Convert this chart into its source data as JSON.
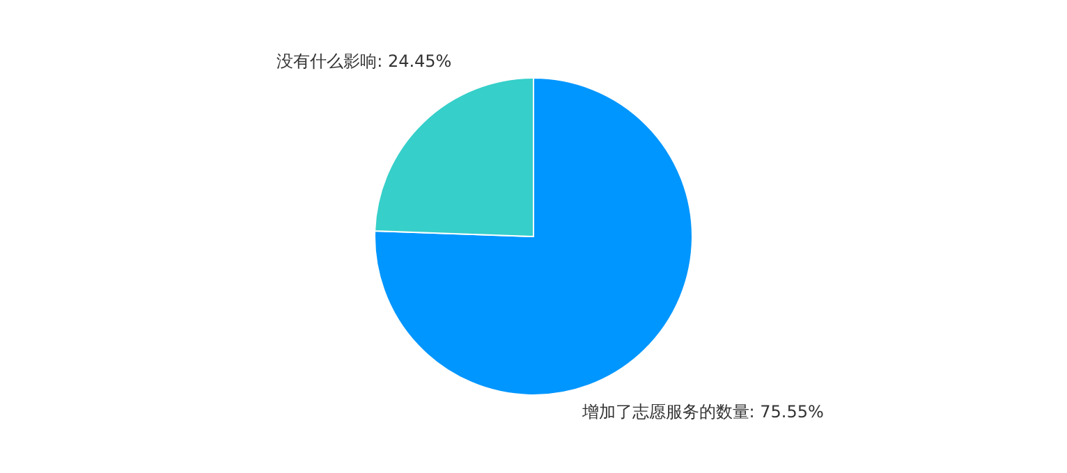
{
  "chart_data": {
    "type": "pie",
    "categories": [
      "增加了志愿服务的数量",
      "没有什么影响"
    ],
    "values": [
      75.55,
      24.45
    ],
    "colors": [
      "#0096ff",
      "#36cfc9"
    ],
    "value_labels": [
      "75.55%",
      "24.45%"
    ]
  }
}
